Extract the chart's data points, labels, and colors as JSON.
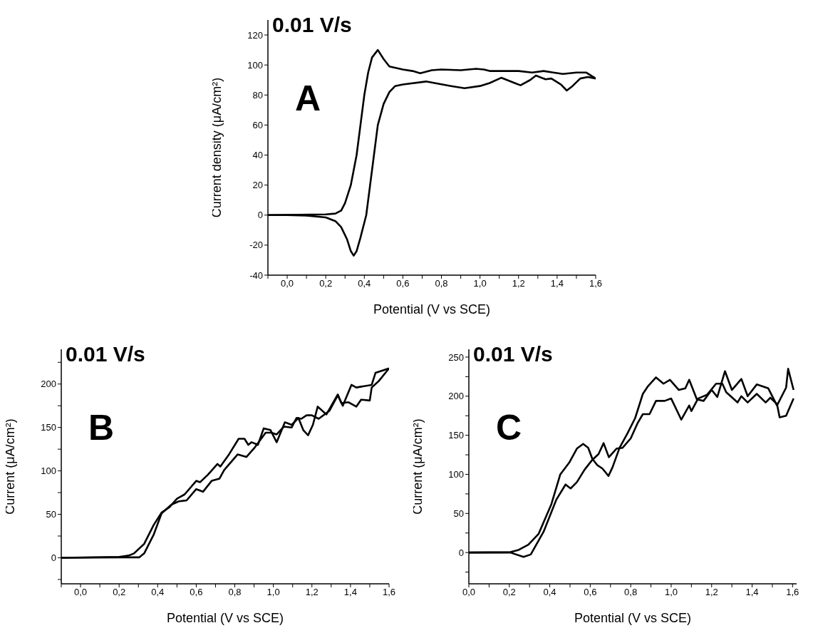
{
  "chart_data": [
    {
      "type": "line",
      "xlabel": "Potential (V vs SCE)",
      "ylabel": "Current density (μA/cm²)",
      "annotations": [
        "0.01 V/s",
        "A"
      ],
      "xlim": [
        -0.1,
        1.6
      ],
      "xticks": [
        {
          "value": -0.1,
          "label": null
        },
        {
          "value": 0,
          "label": "0,0"
        },
        {
          "value": 0.1,
          "label": null
        },
        {
          "value": 0.2,
          "label": "0,2"
        },
        {
          "value": 0.3,
          "label": null
        },
        {
          "value": 0.4,
          "label": "0,4"
        },
        {
          "value": 0.5,
          "label": null
        },
        {
          "value": 0.6,
          "label": "0,6"
        },
        {
          "value": 0.7,
          "label": null
        },
        {
          "value": 0.8,
          "label": "0,8"
        },
        {
          "value": 0.9,
          "label": null
        },
        {
          "value": 1.0,
          "label": "1,0"
        },
        {
          "value": 1.1,
          "label": null
        },
        {
          "value": 1.2,
          "label": "1,2"
        },
        {
          "value": 1.3,
          "label": null
        },
        {
          "value": 1.4,
          "label": "1,4"
        },
        {
          "value": 1.5,
          "label": null
        },
        {
          "value": 1.6,
          "label": "1,6"
        }
      ],
      "ylim": [
        -40,
        130
      ],
      "yticks": [
        -40,
        -20,
        0,
        20,
        40,
        60,
        80,
        100,
        120
      ],
      "series": [
        {
          "color": "#000000",
          "x": [
            -0.1,
            0.2,
            0.25,
            0.28,
            0.3,
            0.33,
            0.36,
            0.38,
            0.4,
            0.42,
            0.44,
            0.47,
            0.5,
            0.53,
            0.6,
            0.65,
            0.69,
            0.75,
            0.8,
            0.9,
            0.98,
            1.02,
            1.05,
            1.2,
            1.27,
            1.33,
            1.38,
            1.43,
            1.5,
            1.55,
            1.6
          ],
          "values": [
            0,
            0.5,
            1,
            3,
            8,
            20,
            40,
            60,
            80,
            95,
            105,
            110,
            104,
            99,
            97,
            96,
            94.5,
            96.5,
            97,
            96.5,
            97.5,
            97,
            96,
            96,
            95,
            96,
            95,
            94,
            95,
            95,
            91
          ]
        },
        {
          "color": "#000000",
          "x": [
            1.6,
            1.56,
            1.52,
            1.48,
            1.45,
            1.42,
            1.37,
            1.34,
            1.29,
            1.26,
            1.21,
            1.18,
            1.11,
            1.05,
            1.0,
            0.92,
            0.85,
            0.72,
            0.6,
            0.56,
            0.53,
            0.5,
            0.47,
            0.45,
            0.43,
            0.41,
            0.38,
            0.36,
            0.345,
            0.33,
            0.31,
            0.28,
            0.25,
            0.2,
            0.1,
            0.0,
            -0.1
          ],
          "values": [
            91,
            92,
            91,
            86,
            83,
            87,
            91,
            90.5,
            93,
            90,
            86.5,
            88,
            91.5,
            88,
            86,
            84.5,
            86,
            89,
            87,
            86,
            82,
            74,
            60,
            40,
            20,
            0,
            -15,
            -24,
            -27,
            -24,
            -16,
            -8,
            -4,
            -1.5,
            -0.3,
            0,
            0
          ]
        }
      ]
    },
    {
      "type": "line",
      "xlabel": "Potential (V vs SCE)",
      "ylabel": "Current (μA/cm²)",
      "annotations": [
        "0.01 V/s",
        "B"
      ],
      "xlim": [
        -0.1,
        1.6
      ],
      "xticks": [
        {
          "value": -0.1,
          "label": null
        },
        {
          "value": 0,
          "label": "0,0"
        },
        {
          "value": 0.1,
          "label": null
        },
        {
          "value": 0.2,
          "label": "0,2"
        },
        {
          "value": 0.3,
          "label": null
        },
        {
          "value": 0.4,
          "label": "0,4"
        },
        {
          "value": 0.5,
          "label": null
        },
        {
          "value": 0.6,
          "label": "0,6"
        },
        {
          "value": 0.7,
          "label": null
        },
        {
          "value": 0.8,
          "label": "0,8"
        },
        {
          "value": 0.9,
          "label": null
        },
        {
          "value": 1.0,
          "label": "1,0"
        },
        {
          "value": 1.1,
          "label": null
        },
        {
          "value": 1.2,
          "label": "1,2"
        },
        {
          "value": 1.3,
          "label": null
        },
        {
          "value": 1.4,
          "label": "1,4"
        },
        {
          "value": 1.5,
          "label": null
        },
        {
          "value": 1.6,
          "label": "1,6"
        }
      ],
      "ylim": [
        -30,
        240
      ],
      "yticks": [
        {
          "value": -25,
          "label": null
        },
        0,
        {
          "value": 25,
          "label": null
        },
        50,
        {
          "value": 75,
          "label": null
        },
        100,
        {
          "value": 125,
          "label": null
        },
        150,
        {
          "value": 175,
          "label": null
        },
        200,
        {
          "value": 225,
          "label": null
        }
      ],
      "series": [
        {
          "color": "#000000",
          "x": [
            -0.1,
            0.2,
            0.25,
            0.277,
            0.33,
            0.38,
            0.42,
            0.46,
            0.5,
            0.54,
            0.6,
            0.62,
            0.66,
            0.71,
            0.725,
            0.77,
            0.82,
            0.85,
            0.87,
            0.887,
            0.92,
            0.95,
            0.985,
            1.017,
            1.06,
            1.095,
            1.13,
            1.155,
            1.18,
            1.205,
            1.23,
            1.275,
            1.334,
            1.353,
            1.39,
            1.43,
            1.455,
            1.5,
            1.51,
            1.545,
            1.6
          ],
          "values": [
            0,
            1,
            2.5,
            5,
            16,
            38,
            52,
            58,
            68,
            73,
            88.5,
            87,
            95.5,
            108,
            105,
            119,
            137,
            137,
            130,
            133,
            130,
            149,
            147,
            133,
            156,
            153,
            161,
            147,
            141,
            153,
            174,
            165,
            188,
            178,
            179,
            174,
            182,
            181,
            196,
            203,
            218
          ]
        },
        {
          "color": "#000000",
          "x": [
            -0.1,
            0.2,
            0.25,
            0.305,
            0.33,
            0.38,
            0.42,
            0.47,
            0.51,
            0.55,
            0.6,
            0.635,
            0.68,
            0.72,
            0.745,
            0.815,
            0.86,
            0.9,
            0.96,
            0.99,
            1.017,
            1.055,
            1.095,
            1.12,
            1.145,
            1.172,
            1.2,
            1.235,
            1.29,
            1.334,
            1.36,
            1.405,
            1.43,
            1.51,
            1.53,
            1.6
          ],
          "values": [
            0,
            0.5,
            0.5,
            0.5,
            5,
            27,
            51,
            61,
            65,
            66,
            79,
            76,
            88.5,
            91,
            101,
            119,
            116,
            126,
            144,
            144,
            142,
            151,
            150,
            161,
            160,
            164,
            164,
            160,
            169,
            187,
            175,
            199,
            196,
            199,
            213,
            218
          ]
        }
      ]
    },
    {
      "type": "line",
      "xlabel": "Potential (V vs SCE)",
      "ylabel": "Current (μA/cm²)",
      "annotations": [
        "0.01 V/s",
        "C"
      ],
      "xlim": [
        0,
        1.62
      ],
      "xticks": [
        {
          "value": 0,
          "label": "0,0"
        },
        {
          "value": 0.1,
          "label": null
        },
        {
          "value": 0.2,
          "label": "0,2"
        },
        {
          "value": 0.3,
          "label": null
        },
        {
          "value": 0.4,
          "label": "0,4"
        },
        {
          "value": 0.5,
          "label": null
        },
        {
          "value": 0.6,
          "label": "0,6"
        },
        {
          "value": 0.7,
          "label": null
        },
        {
          "value": 0.8,
          "label": "0,8"
        },
        {
          "value": 0.9,
          "label": null
        },
        {
          "value": 1.0,
          "label": "1,0"
        },
        {
          "value": 1.1,
          "label": null
        },
        {
          "value": 1.2,
          "label": "1,2"
        },
        {
          "value": 1.3,
          "label": null
        },
        {
          "value": 1.4,
          "label": "1,4"
        },
        {
          "value": 1.5,
          "label": null
        },
        {
          "value": 1.6,
          "label": "1,6"
        }
      ],
      "ylim": [
        -40,
        260
      ],
      "yticks": [
        {
          "value": -25,
          "label": null
        },
        0,
        {
          "value": 25,
          "label": null
        },
        50,
        {
          "value": 75,
          "label": null
        },
        100,
        {
          "value": 125,
          "label": null
        },
        150,
        {
          "value": 175,
          "label": null
        },
        200,
        {
          "value": 225,
          "label": null
        },
        250
      ],
      "series": [
        {
          "color": "#000000",
          "x": [
            0,
            0.205,
            0.243,
            0.294,
            0.345,
            0.408,
            0.452,
            0.496,
            0.534,
            0.565,
            0.59,
            0.61,
            0.634,
            0.66,
            0.69,
            0.71,
            0.745,
            0.785,
            0.822,
            0.86,
            0.886,
            0.925,
            0.962,
            0.994,
            1.038,
            1.07,
            1.089,
            1.127,
            1.16,
            1.2,
            1.228,
            1.266,
            1.3,
            1.347,
            1.378,
            1.423,
            1.48,
            1.523,
            1.568,
            1.578,
            1.605
          ],
          "values": [
            0,
            0.5,
            3,
            10,
            24,
            62,
            100,
            115,
            133,
            139,
            134,
            120,
            112,
            107.5,
            98,
            109,
            134,
            153,
            172,
            203,
            213,
            224,
            216,
            221,
            208,
            210,
            221,
            196,
            194,
            208,
            199,
            232,
            208,
            222,
            200,
            215,
            210,
            188,
            211,
            235,
            208
          ]
        },
        {
          "color": "#000000",
          "x": [
            0,
            0.205,
            0.27,
            0.306,
            0.37,
            0.433,
            0.478,
            0.503,
            0.534,
            0.572,
            0.61,
            0.641,
            0.666,
            0.692,
            0.73,
            0.76,
            0.8,
            0.835,
            0.86,
            0.893,
            0.925,
            0.968,
            1.0,
            1.05,
            1.089,
            1.1,
            1.133,
            1.178,
            1.222,
            1.253,
            1.272,
            1.328,
            1.347,
            1.378,
            1.423,
            1.467,
            1.49,
            1.523,
            1.536,
            1.568,
            1.605
          ],
          "values": [
            0,
            0,
            -5.5,
            -2.5,
            27,
            68,
            87,
            82,
            90,
            106,
            118.5,
            126,
            140,
            122,
            133,
            134,
            146,
            166,
            177,
            177,
            194,
            194,
            197,
            170,
            188,
            181,
            197,
            202,
            216,
            216,
            205,
            192,
            200,
            192,
            203,
            192,
            198,
            190,
            173,
            175,
            197
          ]
        }
      ]
    }
  ]
}
